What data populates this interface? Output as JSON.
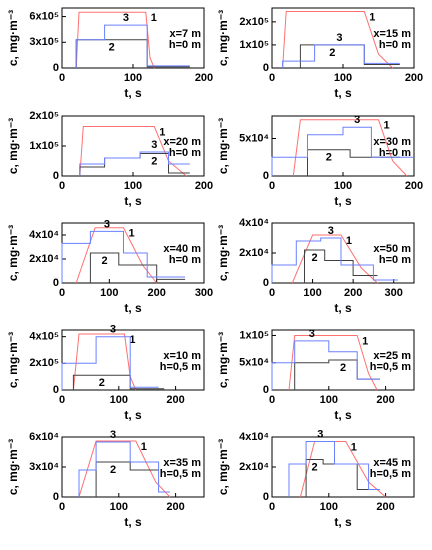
{
  "chart_data": [
    {
      "type": "line",
      "annotations": [
        "x=7 m",
        "h=0 m"
      ],
      "x_label": "t, s",
      "y_label": "c, mg·m⁻³",
      "xlim": [
        0,
        200
      ],
      "xticks": [
        0,
        100,
        200
      ],
      "ylim": [
        0,
        700000
      ],
      "yticks": [
        0,
        {
          "value": 300000,
          "label": "3x10⁵"
        },
        {
          "value": 600000,
          "label": "6x10⁵"
        }
      ],
      "series": [
        {
          "name": "1",
          "color": "#ff7070",
          "x": [
            20,
            24,
            118,
            124,
            130
          ],
          "values": [
            0,
            650000,
            650000,
            120000,
            0
          ]
        },
        {
          "name": "2",
          "color": "#404040",
          "x": [
            20,
            20,
            120,
            120,
            180
          ],
          "values": [
            0,
            330000,
            330000,
            15000,
            15000
          ]
        },
        {
          "name": "3",
          "color": "#6a80ff",
          "x": [
            20,
            20,
            60,
            60,
            120,
            120,
            180
          ],
          "values": [
            0,
            330000,
            330000,
            500000,
            500000,
            25000,
            25000
          ]
        }
      ]
    },
    {
      "type": "line",
      "annotations": [
        "x=15 m",
        "h=0 m"
      ],
      "x_label": "t, s",
      "y_label": "c, mg·m⁻³",
      "xlim": [
        0,
        200
      ],
      "xticks": [
        0,
        100,
        200
      ],
      "ylim": [
        0,
        260000
      ],
      "yticks": [
        0,
        {
          "value": 100000,
          "label": "1x10⁵"
        },
        {
          "value": 200000,
          "label": "2x10⁵"
        }
      ],
      "series": [
        {
          "name": "1",
          "color": "#ff7070",
          "x": [
            15,
            20,
            130,
            150,
            170
          ],
          "values": [
            0,
            245000,
            245000,
            60000,
            0
          ]
        },
        {
          "name": "2",
          "color": "#404040",
          "x": [
            40,
            40,
            130,
            130,
            180
          ],
          "values": [
            0,
            100000,
            100000,
            15000,
            15000
          ]
        },
        {
          "name": "3",
          "color": "#6a80ff",
          "x": [
            15,
            15,
            60,
            60,
            130,
            130,
            180
          ],
          "values": [
            0,
            30000,
            30000,
            100000,
            100000,
            20000,
            20000
          ]
        }
      ]
    },
    {
      "type": "line",
      "annotations": [
        "x=20 m",
        "h=0 m"
      ],
      "x_label": "t, s",
      "y_label": "c, mg·m⁻³",
      "xlim": [
        0,
        200
      ],
      "xticks": [
        0,
        100,
        200
      ],
      "ylim": [
        0,
        200000
      ],
      "yticks": [
        0,
        {
          "value": 100000,
          "label": "1x10⁵"
        },
        {
          "value": 200000,
          "label": "2x10⁵"
        }
      ],
      "series": [
        {
          "name": "1",
          "color": "#ff7070",
          "x": [
            25,
            30,
            130,
            150,
            175
          ],
          "values": [
            0,
            165000,
            165000,
            50000,
            0
          ]
        },
        {
          "name": "2",
          "color": "#404040",
          "x": [
            25,
            25,
            60,
            60,
            110,
            110,
            150,
            150,
            180
          ],
          "values": [
            0,
            30000,
            30000,
            60000,
            60000,
            75000,
            75000,
            10000,
            10000
          ]
        },
        {
          "name": "3",
          "color": "#6a80ff",
          "x": [
            25,
            25,
            60,
            60,
            110,
            110,
            150,
            150,
            180
          ],
          "values": [
            0,
            40000,
            40000,
            60000,
            60000,
            80000,
            80000,
            40000,
            40000
          ]
        }
      ]
    },
    {
      "type": "line",
      "annotations": [
        "x=30 m",
        "h=0 m"
      ],
      "x_label": "t, s",
      "y_label": "c, mg·m⁻³",
      "xlim": [
        0,
        200
      ],
      "xticks": [
        0,
        100,
        200
      ],
      "ylim": [
        0,
        80000
      ],
      "yticks": [
        0,
        {
          "value": 50000,
          "label": "5x10⁴"
        }
      ],
      "series": [
        {
          "name": "1",
          "color": "#ff7070",
          "x": [
            30,
            40,
            150,
            170,
            190
          ],
          "values": [
            0,
            75000,
            75000,
            20000,
            0
          ]
        },
        {
          "name": "2",
          "color": "#404040",
          "x": [
            50,
            50,
            110,
            110,
            180
          ],
          "values": [
            0,
            35000,
            35000,
            25000,
            25000
          ]
        },
        {
          "name": "3",
          "color": "#6a80ff",
          "x": [
            0,
            0,
            50,
            50,
            100,
            100,
            140,
            140,
            200
          ],
          "values": [
            0,
            25000,
            25000,
            55000,
            55000,
            65000,
            65000,
            25000,
            25000
          ]
        }
      ]
    },
    {
      "type": "line",
      "annotations": [
        "x=40 m",
        "h=0 m"
      ],
      "x_label": "t, s",
      "y_label": "c, mg·m⁻³",
      "xlim": [
        0,
        300
      ],
      "xticks": [
        0,
        100,
        200,
        300
      ],
      "ylim": [
        0,
        50000
      ],
      "yticks": [
        0,
        {
          "value": 20000,
          "label": "2x10⁴"
        },
        {
          "value": 40000,
          "label": "4x10⁴"
        }
      ],
      "series": [
        {
          "name": "1",
          "color": "#ff7070",
          "x": [
            30,
            70,
            130,
            170,
            200
          ],
          "values": [
            0,
            46000,
            46000,
            15000,
            0
          ]
        },
        {
          "name": "2",
          "color": "#404040",
          "x": [
            60,
            60,
            120,
            120,
            200,
            200,
            260
          ],
          "values": [
            0,
            25000,
            25000,
            15000,
            15000,
            3000,
            3000
          ]
        },
        {
          "name": "3",
          "color": "#6a80ff",
          "x": [
            0,
            0,
            60,
            60,
            130,
            130,
            180,
            180,
            260
          ],
          "values": [
            0,
            33000,
            33000,
            43000,
            43000,
            25000,
            25000,
            5000,
            5000
          ]
        }
      ]
    },
    {
      "type": "line",
      "annotations": [
        "x=50 m",
        "h=0 m"
      ],
      "x_label": "t, s",
      "y_label": "c, mg·m⁻³",
      "xlim": [
        0,
        350
      ],
      "xticks": [
        0,
        100,
        200,
        300
      ],
      "ylim": [
        0,
        40000
      ],
      "yticks": [
        0,
        {
          "value": 20000,
          "label": "2x10⁴"
        },
        {
          "value": 40000,
          "label": "4x10⁴"
        }
      ],
      "series": [
        {
          "name": "1",
          "color": "#ff7070",
          "x": [
            50,
            100,
            170,
            220,
            260
          ],
          "values": [
            0,
            32000,
            32000,
            10000,
            0
          ]
        },
        {
          "name": "2",
          "color": "#404040",
          "x": [
            80,
            80,
            130,
            130,
            200,
            200,
            260
          ],
          "values": [
            0,
            22000,
            22000,
            15000,
            15000,
            5000,
            5000
          ]
        },
        {
          "name": "3",
          "color": "#6a80ff",
          "x": [
            0,
            0,
            60,
            60,
            120,
            120,
            170,
            170,
            250,
            250,
            310
          ],
          "values": [
            0,
            12000,
            12000,
            28000,
            28000,
            30000,
            30000,
            12000,
            12000,
            2000,
            2000
          ]
        }
      ]
    },
    {
      "type": "line",
      "annotations": [
        "x=10 m",
        "h=0,5 m"
      ],
      "x_label": "t, s",
      "y_label": "c, mg·m⁻³",
      "xlim": [
        0,
        250
      ],
      "xticks": [
        0,
        100,
        200
      ],
      "ylim": [
        0,
        450000
      ],
      "yticks": [
        0,
        {
          "value": 200000,
          "label": "2x10⁵"
        },
        {
          "value": 400000,
          "label": "4x10⁵"
        }
      ],
      "series": [
        {
          "name": "1",
          "color": "#ff7070",
          "x": [
            20,
            30,
            110,
            120,
            130
          ],
          "values": [
            0,
            420000,
            420000,
            100000,
            0
          ]
        },
        {
          "name": "2",
          "color": "#404040",
          "x": [
            20,
            20,
            120,
            120,
            180
          ],
          "values": [
            0,
            110000,
            110000,
            10000,
            10000
          ]
        },
        {
          "name": "3",
          "color": "#6a80ff",
          "x": [
            0,
            0,
            60,
            60,
            120,
            120,
            170
          ],
          "values": [
            0,
            200000,
            200000,
            400000,
            400000,
            20000,
            20000
          ]
        }
      ]
    },
    {
      "type": "line",
      "annotations": [
        "x=25 m",
        "h=0,5 m"
      ],
      "x_label": "t, s",
      "y_label": "c, mg·m⁻³",
      "xlim": [
        0,
        250
      ],
      "xticks": [
        0,
        100,
        200
      ],
      "ylim": [
        0,
        110000
      ],
      "yticks": [
        0,
        {
          "value": 50000,
          "label": "5x10⁴"
        },
        {
          "value": 100000,
          "label": "1x10⁵"
        }
      ],
      "series": [
        {
          "name": "1",
          "color": "#ff7070",
          "x": [
            30,
            40,
            150,
            170,
            185
          ],
          "values": [
            0,
            100000,
            100000,
            30000,
            0
          ]
        },
        {
          "name": "2",
          "color": "#404040",
          "x": [
            40,
            40,
            100,
            100,
            150,
            150,
            190
          ],
          "values": [
            0,
            50000,
            50000,
            55000,
            55000,
            20000,
            20000
          ]
        },
        {
          "name": "3",
          "color": "#6a80ff",
          "x": [
            0,
            0,
            40,
            40,
            100,
            100,
            150,
            150,
            190
          ],
          "values": [
            0,
            50000,
            50000,
            90000,
            90000,
            70000,
            70000,
            20000,
            20000
          ]
        }
      ]
    },
    {
      "type": "line",
      "annotations": [
        "x=35 m",
        "h=0,5 m"
      ],
      "x_label": "t, s",
      "y_label": "c, mg·m⁻³",
      "xlim": [
        0,
        250
      ],
      "xticks": [
        0,
        100,
        200
      ],
      "ylim": [
        0,
        60000
      ],
      "yticks": [
        0,
        {
          "value": 30000,
          "label": "3x10⁴"
        },
        {
          "value": 60000,
          "label": "6x10⁴"
        }
      ],
      "series": [
        {
          "name": "1",
          "color": "#ff7070",
          "x": [
            30,
            60,
            130,
            165,
            190
          ],
          "values": [
            0,
            56000,
            56000,
            15000,
            0
          ]
        },
        {
          "name": "2",
          "color": "#404040",
          "x": [
            60,
            60,
            120,
            120,
            170
          ],
          "values": [
            0,
            35000,
            35000,
            27000,
            27000
          ]
        },
        {
          "name": "3",
          "color": "#6a80ff",
          "x": [
            30,
            30,
            60,
            60,
            120,
            120,
            170,
            170,
            190
          ],
          "values": [
            0,
            27000,
            27000,
            55000,
            55000,
            35000,
            35000,
            5000,
            5000
          ]
        }
      ]
    },
    {
      "type": "line",
      "annotations": [
        "x=45 m",
        "h=0,5 m"
      ],
      "x_label": "t, s",
      "y_label": "c, mg·m⁻³",
      "xlim": [
        0,
        250
      ],
      "xticks": [
        0,
        100,
        200
      ],
      "ylim": [
        0,
        40000
      ],
      "yticks": [
        0,
        {
          "value": 20000,
          "label": "2x10⁴"
        },
        {
          "value": 40000,
          "label": "4x10⁴"
        }
      ],
      "series": [
        {
          "name": "1",
          "color": "#ff7070",
          "x": [
            50,
            75,
            130,
            170,
            200
          ],
          "values": [
            0,
            37000,
            37000,
            10000,
            0
          ]
        },
        {
          "name": "2",
          "color": "#404040",
          "x": [
            60,
            60,
            90,
            90,
            150,
            150,
            190
          ],
          "values": [
            0,
            25000,
            25000,
            22000,
            22000,
            5000,
            5000
          ]
        },
        {
          "name": "3",
          "color": "#6a80ff",
          "x": [
            30,
            30,
            60,
            60,
            110,
            110,
            170,
            170,
            190
          ],
          "values": [
            0,
            22000,
            22000,
            37000,
            37000,
            22000,
            22000,
            5000,
            5000
          ]
        }
      ]
    }
  ]
}
